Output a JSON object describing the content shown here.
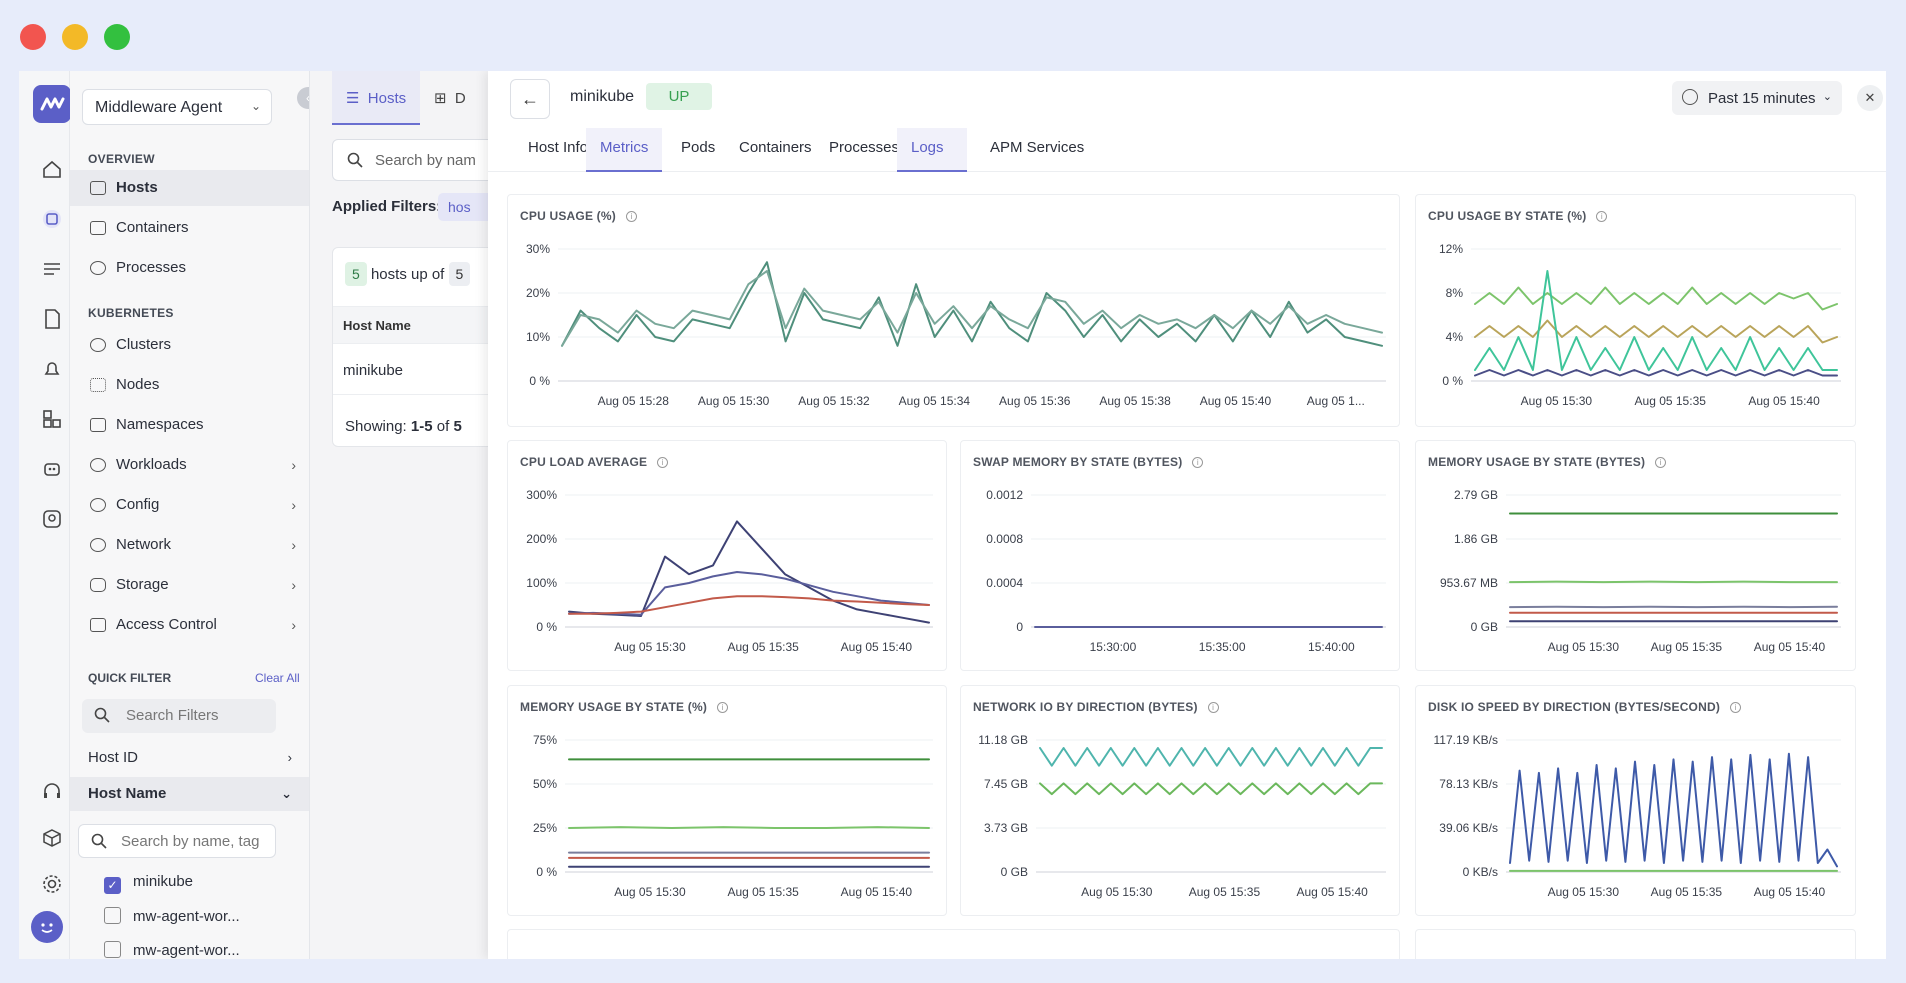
{
  "sidebar": {
    "agent": "Middleware Agent",
    "overview_label": "OVERVIEW",
    "overview_items": [
      "Hosts",
      "Containers",
      "Processes"
    ],
    "kubernetes_label": "KUBERNETES",
    "kubernetes_items": [
      "Clusters",
      "Nodes",
      "Namespaces",
      "Workloads",
      "Config",
      "Network",
      "Storage",
      "Access Control"
    ],
    "quick_filter": "QUICK FILTER",
    "clear_all": "Clear All",
    "search_filters_placeholder": "Search Filters",
    "host_id": "Host ID",
    "host_name": "Host Name",
    "search_by_name_placeholder": "Search by name, tag",
    "host_options": [
      "minikube",
      "mw-agent-wor...",
      "mw-agent-wor..."
    ]
  },
  "list_panel": {
    "tabs": [
      "Hosts",
      "D"
    ],
    "search_placeholder": "Search by nam",
    "applied_filters": "Applied Filters:",
    "applied_chip": "hos",
    "up_count": "5",
    "hosts_up_of": "hosts up of",
    "total": "5",
    "col_host_name": "Host Name",
    "row_host": "minikube",
    "showing_prefix": "Showing:",
    "showing_range": "1-5",
    "showing_of": "of",
    "showing_total": "5"
  },
  "detail": {
    "host": "minikube",
    "status": "UP",
    "time_range": "Past 15 minutes",
    "tabs": [
      "Host Info",
      "Metrics",
      "Pods",
      "Containers",
      "Processes",
      "Logs",
      "APM Services"
    ],
    "active_tab": "Metrics"
  },
  "colors": {
    "accent": "#5b5fc7",
    "up_green": "#37a050"
  },
  "chart_data": [
    {
      "type": "line",
      "title": "CPU USAGE (%)",
      "yticks": [
        "30%",
        "20%",
        "10%",
        "0 %"
      ],
      "ylim": [
        0,
        30
      ],
      "xticks": [
        "Aug 05 15:28",
        "Aug 05 15:30",
        "Aug 05 15:32",
        "Aug 05 15:34",
        "Aug 05 15:36",
        "Aug 05 15:38",
        "Aug 05 15:40",
        "Aug 05 1..."
      ],
      "series": [
        {
          "color": "#4f8f7c",
          "values": [
            8,
            16,
            12,
            9,
            15,
            10,
            9,
            14,
            13,
            12,
            20,
            27,
            9,
            20,
            14,
            13,
            12,
            19,
            8,
            22,
            10,
            16,
            9,
            18,
            12,
            9,
            20,
            16,
            10,
            15,
            9,
            14,
            10,
            13,
            9,
            15,
            9,
            16,
            10,
            18,
            11,
            14,
            10,
            9,
            8
          ]
        },
        {
          "color": "#7aa89a",
          "values": [
            8,
            15,
            14,
            11,
            16,
            13,
            12,
            16,
            15,
            14,
            22,
            25,
            12,
            21,
            16,
            15,
            14,
            18,
            11,
            20,
            13,
            17,
            12,
            17,
            14,
            12,
            19,
            18,
            13,
            16,
            12,
            15,
            13,
            14,
            12,
            15,
            12,
            16,
            13,
            17,
            13,
            15,
            13,
            12,
            11
          ]
        }
      ]
    },
    {
      "type": "line",
      "title": "CPU USAGE BY STATE (%)",
      "yticks": [
        "12%",
        "8%",
        "4%",
        "0 %"
      ],
      "ylim": [
        0,
        12
      ],
      "xticks": [
        "Aug 05 15:30",
        "Aug 05 15:35",
        "Aug 05 15:40"
      ],
      "series": [
        {
          "color": "#7cc46b",
          "values": [
            7,
            8,
            7,
            8.5,
            7,
            8,
            7,
            8,
            7,
            8.5,
            7,
            8,
            7,
            8,
            7,
            8.5,
            7,
            8,
            7,
            8,
            7,
            8,
            7.5,
            8,
            6.5,
            7
          ]
        },
        {
          "color": "#b9a45a",
          "values": [
            4,
            5,
            4,
            5,
            4,
            5.5,
            4,
            5,
            4,
            5,
            4,
            5,
            4,
            5,
            4,
            5,
            4,
            5,
            4,
            5,
            4,
            5,
            4,
            5,
            3.5,
            4
          ]
        },
        {
          "color": "#3fc59a",
          "values": [
            1,
            3,
            1,
            4,
            1,
            10,
            1,
            4,
            1,
            3,
            1,
            4,
            1,
            3,
            1,
            4,
            1,
            3,
            1,
            4,
            1,
            3,
            1,
            3,
            1,
            1
          ]
        },
        {
          "color": "#4a4e86",
          "values": [
            0.5,
            1,
            0.5,
            1,
            0.5,
            1,
            0.5,
            1,
            0.5,
            1,
            0.5,
            1,
            0.5,
            1,
            0.5,
            1,
            0.5,
            1,
            0.5,
            1,
            0.5,
            1,
            0.5,
            1,
            0.5,
            0.5
          ]
        }
      ]
    },
    {
      "type": "line",
      "title": "CPU LOAD AVERAGE",
      "yticks": [
        "300%",
        "200%",
        "100%",
        "0 %"
      ],
      "ylim": [
        0,
        300
      ],
      "xticks": [
        "Aug 05 15:30",
        "Aug 05 15:35",
        "Aug 05 15:40"
      ],
      "series": [
        {
          "color": "#3e4274",
          "values": [
            35,
            30,
            28,
            25,
            160,
            120,
            140,
            240,
            180,
            120,
            90,
            60,
            40,
            30,
            20,
            10
          ]
        },
        {
          "color": "#5a5e9c",
          "values": [
            30,
            32,
            30,
            28,
            90,
            100,
            115,
            125,
            120,
            110,
            95,
            80,
            70,
            60,
            55,
            50
          ]
        },
        {
          "color": "#c25a4a",
          "values": [
            30,
            30,
            32,
            35,
            45,
            55,
            65,
            70,
            70,
            68,
            65,
            60,
            58,
            55,
            52,
            50
          ]
        }
      ]
    },
    {
      "type": "line",
      "title": "SWAP MEMORY BY STATE (BYTES)",
      "yticks": [
        "0.0012",
        "0.0008",
        "0.0004",
        "0"
      ],
      "ylim": [
        0,
        0.0012
      ],
      "xticks": [
        "15:30:00",
        "15:35:00",
        "15:40:00"
      ],
      "series": [
        {
          "color": "#5a5e9c",
          "values": [
            0,
            0,
            0,
            0,
            0,
            0,
            0,
            0,
            0,
            0
          ]
        }
      ]
    },
    {
      "type": "line",
      "title": "MEMORY USAGE BY STATE (BYTES)",
      "yticks": [
        "2.79 GB",
        "1.86 GB",
        "953.67 MB",
        "0 GB"
      ],
      "ylim": [
        0,
        2.79
      ],
      "xticks": [
        "Aug 05 15:30",
        "Aug 05 15:35",
        "Aug 05 15:40"
      ],
      "series": [
        {
          "color": "#3f8f3c",
          "values": [
            2.4,
            2.4,
            2.4,
            2.4,
            2.4,
            2.4,
            2.4,
            2.4
          ]
        },
        {
          "color": "#7cc46b",
          "values": [
            0.95,
            0.96,
            0.95,
            0.96,
            0.95,
            0.96,
            0.95,
            0.95
          ]
        },
        {
          "color": "#7a7e9c",
          "values": [
            0.42,
            0.43,
            0.42,
            0.43,
            0.42,
            0.43,
            0.42,
            0.43
          ]
        },
        {
          "color": "#c25a4a",
          "values": [
            0.3,
            0.3,
            0.3,
            0.3,
            0.3,
            0.3,
            0.3,
            0.3
          ]
        },
        {
          "color": "#3e4274",
          "values": [
            0.12,
            0.12,
            0.12,
            0.12,
            0.12,
            0.12,
            0.12,
            0.12
          ]
        }
      ]
    },
    {
      "type": "line",
      "title": "MEMORY USAGE BY STATE (%)",
      "yticks": [
        "75%",
        "50%",
        "25%",
        "0 %"
      ],
      "ylim": [
        0,
        75
      ],
      "xticks": [
        "Aug 05 15:30",
        "Aug 05 15:35",
        "Aug 05 15:40"
      ],
      "series": [
        {
          "color": "#3f8f3c",
          "values": [
            64,
            64,
            64,
            64,
            64,
            64,
            64,
            64
          ]
        },
        {
          "color": "#7cc46b",
          "values": [
            25,
            25.5,
            25,
            25.5,
            25,
            25,
            25.5,
            25
          ]
        },
        {
          "color": "#7a7e9c",
          "values": [
            11,
            11,
            11,
            11,
            11,
            11,
            11,
            11
          ]
        },
        {
          "color": "#c25a4a",
          "values": [
            8,
            8,
            8,
            8,
            8,
            8,
            8,
            8
          ]
        },
        {
          "color": "#3e4274",
          "values": [
            3,
            3,
            3,
            3,
            3,
            3,
            3,
            3
          ]
        }
      ]
    },
    {
      "type": "line",
      "title": "NETWORK IO BY DIRECTION (BYTES)",
      "yticks": [
        "11.18 GB",
        "7.45 GB",
        "3.73 GB",
        "0 GB"
      ],
      "ylim": [
        0,
        11.18
      ],
      "xticks": [
        "Aug 05 15:30",
        "Aug 05 15:35",
        "Aug 05 15:40"
      ],
      "series": [
        {
          "color": "#4fb5ad",
          "values": [
            10.5,
            9,
            10.5,
            9,
            10.5,
            9,
            10.5,
            9,
            10.5,
            9,
            10.5,
            9,
            10.5,
            9,
            10.5,
            9,
            10.5,
            9,
            10.5,
            9,
            10.5,
            9,
            10.5,
            9,
            10.5,
            9,
            10.5,
            9,
            10.5,
            10.5
          ]
        },
        {
          "color": "#6bb85c",
          "values": [
            7.5,
            6.6,
            7.5,
            6.6,
            7.5,
            6.6,
            7.5,
            6.6,
            7.5,
            6.6,
            7.5,
            6.6,
            7.5,
            6.6,
            7.5,
            6.6,
            7.5,
            6.6,
            7.5,
            6.6,
            7.5,
            6.6,
            7.5,
            6.6,
            7.5,
            6.6,
            7.5,
            6.6,
            7.5,
            7.5
          ]
        }
      ]
    },
    {
      "type": "line",
      "title": "DISK IO SPEED BY DIRECTION (BYTES/SECOND)",
      "yticks": [
        "117.19 KB/s",
        "78.13 KB/s",
        "39.06 KB/s",
        "0 KB/s"
      ],
      "ylim": [
        0,
        117.19
      ],
      "xticks": [
        "Aug 05 15:30",
        "Aug 05 15:35",
        "Aug 05 15:40"
      ],
      "series": [
        {
          "color": "#3e5aa8",
          "values": [
            8,
            90,
            10,
            88,
            9,
            92,
            10,
            88,
            8,
            95,
            10,
            92,
            9,
            98,
            10,
            95,
            8,
            100,
            10,
            98,
            9,
            102,
            10,
            100,
            8,
            104,
            10,
            100,
            9,
            105,
            10,
            102,
            8,
            20,
            5
          ]
        },
        {
          "color": "#7cc46b",
          "values": [
            1,
            1,
            1,
            1,
            1,
            1,
            1,
            1,
            1,
            1,
            1,
            1,
            1,
            1,
            1,
            1,
            1,
            1,
            1,
            1,
            1,
            1,
            1,
            1,
            1,
            1,
            1,
            1,
            1,
            1,
            1,
            1,
            1,
            1,
            1
          ]
        }
      ]
    }
  ]
}
